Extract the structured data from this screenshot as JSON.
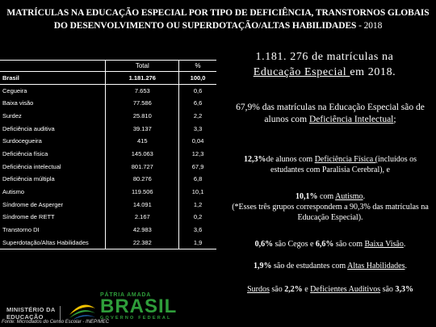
{
  "title": {
    "main": "MATRÍCULAS NA EDUCAÇÃO ESPECIAL POR TIPO DE DEFICIÊNCIA, TRANSTORNOS GLOBAIS DO DESENVOLVIMENTO OU SUPERDOTAÇÃO/ALTAS HABILIDADES",
    "year": " - 2018"
  },
  "table": {
    "headers": [
      "",
      "Total",
      "%"
    ],
    "rows": [
      {
        "name": "Brasil",
        "total": "1.181.276",
        "pct": "100,0"
      },
      {
        "name": "Cegueira",
        "total": "7.653",
        "pct": "0,6"
      },
      {
        "name": "Baixa visão",
        "total": "77.586",
        "pct": "6,6"
      },
      {
        "name": "Surdez",
        "total": "25.810",
        "pct": "2,2"
      },
      {
        "name": "Deficiência auditiva",
        "total": "39.137",
        "pct": "3,3"
      },
      {
        "name": "Surdocegueira",
        "total": "415",
        "pct": "0,04"
      },
      {
        "name": "Deficiência física",
        "total": "145.063",
        "pct": "12,3"
      },
      {
        "name": "Deficiência intelectual",
        "total": "801.727",
        "pct": "67,9"
      },
      {
        "name": "Deficiência múltipla",
        "total": "80.276",
        "pct": "6,8"
      },
      {
        "name": "Autismo",
        "total": "119.506",
        "pct": "10,1"
      },
      {
        "name": "Síndrome de Asperger",
        "total": "14.091",
        "pct": "1,2"
      },
      {
        "name": "Síndrome de RETT",
        "total": "2.167",
        "pct": "0,2"
      },
      {
        "name": "Transtorno DI",
        "total": "42.983",
        "pct": "3,6"
      },
      {
        "name": "Superdotação/Altas Habilidades",
        "total": "22.382",
        "pct": "1,9"
      }
    ],
    "source": "Fonte: Microdados do Censo Escolar - INEP/MEC"
  },
  "highlights": {
    "h1_pre": "1.181. 276 de matrículas na ",
    "h1_link": "Educação Especial ",
    "h1_post": "em 2018.",
    "h2_pre": "67,9% das matrículas na Educação Especial são de alunos com ",
    "h2_link": "Deficiência Intelectual",
    "h2_post": ";",
    "p3_bold": "12,3%",
    "p3_pre": "de alunos com ",
    "p3_link": "Deficiência Física (",
    "p3_post": "incluídos os estudantes com Paralisia Cerebral), e",
    "p4_bold": "10,1%",
    "p4_pre": " com ",
    "p4_link": "Autismo",
    "p4_post": ".",
    "p4_note": "(*Esses três grupos correspondem a 90,3% das matrículas na Educação Especial).",
    "p5_b1": "0,6%",
    "p5_t1": " são Cegos e ",
    "p5_b2": "6,6%",
    "p5_t2": " são com ",
    "p5_link": "Baixa Visão",
    "p5_t3": ".",
    "p6_b1": "1,9%",
    "p6_t1": " são de estudantes com ",
    "p6_link": "Altas Habilidades",
    "p6_t2": ".",
    "p7_l1": "Surdos",
    "p7_t1": " são ",
    "p7_b1": "2,2%",
    "p7_t2": " e ",
    "p7_l2": "Deficientes Auditivos",
    "p7_t3": " são ",
    "p7_b2": "3,3%"
  },
  "footer": {
    "mec_line1": "MINISTÉRIO DA",
    "mec_line2": "EDUCAÇÃO",
    "patria": "PÁTRIA AMADA",
    "brasil": "BRASIL",
    "governo": "GOVERNO FEDERAL"
  },
  "colors": {
    "background": "#000000",
    "brand_green": "#2e9d3a",
    "brand_yellow": "#f2c200",
    "brand_blue": "#1f5fa8"
  }
}
